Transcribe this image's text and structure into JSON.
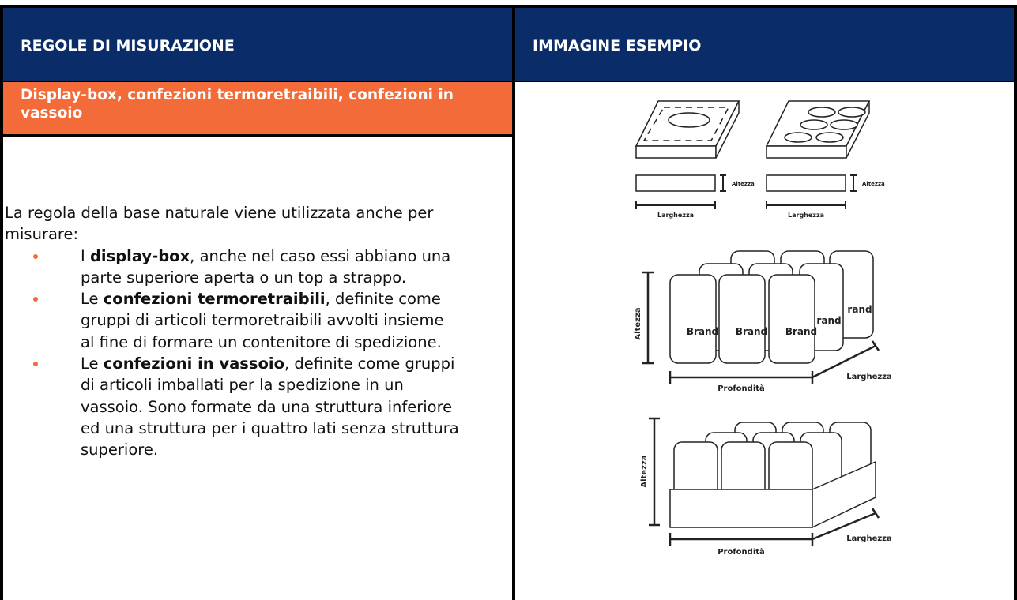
{
  "header": {
    "left": "REGOLE DI MISURAZIONE",
    "right": "IMMAGINE ESEMPIO"
  },
  "section": {
    "title": "Display-box, confezioni termoretraibili, confezioni in vassoio"
  },
  "body": {
    "intro": "La regola della base naturale viene utilizzata anche per misurare:",
    "bullets": [
      {
        "prefix": "I",
        "bold": "display-box",
        "text": ", anche nel caso essi abbiano una parte superiore aperta o un top a strappo."
      },
      {
        "prefix": "Le",
        "bold": "confezioni termoretraibili",
        "text": ", definite come gruppi di articoli termoretraibili avvolti insieme al fine di formare un contenitore di spedizione."
      },
      {
        "prefix": "Le",
        "bold": "confezioni in vassoio",
        "text": ", definite come gruppi di articoli imballati per la spedizione in un vassoio. Sono formate da una struttura inferiore ed una struttura per i quattro lati senza struttura superiore."
      }
    ]
  },
  "illustration": {
    "top": {
      "height": "Altezza",
      "width": "Larghezza"
    },
    "shrink": {
      "height": "Altezza",
      "depth": "Profondità",
      "width": "Larghezza",
      "brand": "Brand",
      "brand_partial": "rand"
    },
    "tray": {
      "height": "Altezza",
      "depth": "Profondità",
      "width": "Larghezza"
    }
  }
}
